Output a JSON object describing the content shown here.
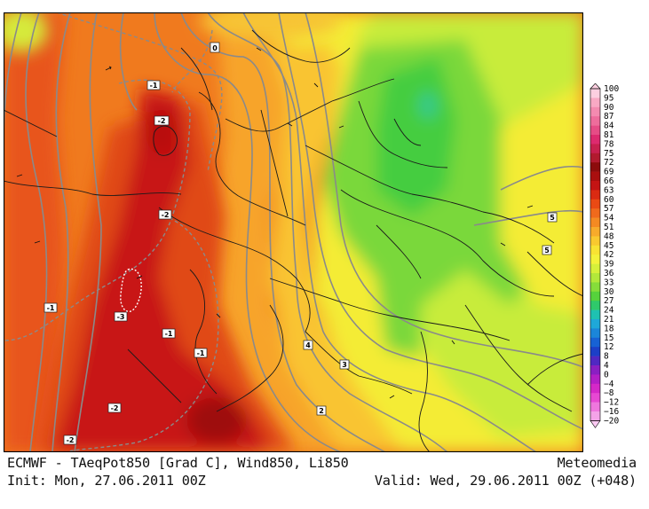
{
  "caption": {
    "title": "ECMWF - TAeqPot850 [Grad C], Wind850, Li850",
    "provider": "Meteomedia",
    "init": "Init: Mon, 27.06.2011 00Z",
    "valid": "Valid: Wed, 29.06.2011 00Z (+048)"
  },
  "legend": {
    "labels": [
      "100",
      "95",
      "90",
      "87",
      "84",
      "81",
      "78",
      "75",
      "72",
      "69",
      "66",
      "63",
      "60",
      "57",
      "54",
      "51",
      "48",
      "45",
      "42",
      "39",
      "36",
      "33",
      "30",
      "27",
      "24",
      "21",
      "18",
      "15",
      "12",
      "8",
      "4",
      "0",
      "−4",
      "−8",
      "−12",
      "−16",
      "−20"
    ],
    "colors": [
      "#fccfe0",
      "#f9a9c4",
      "#f48bb0",
      "#ee6d9c",
      "#e64c86",
      "#dd2a6f",
      "#c8204f",
      "#b11a2e",
      "#8c0c0c",
      "#a90f0f",
      "#c41414",
      "#da2a12",
      "#ea4a14",
      "#f06a1c",
      "#f48a22",
      "#f7ab2b",
      "#f9c92f",
      "#f8e333",
      "#f3f23a",
      "#d6f03a",
      "#b2e83a",
      "#86dd3a",
      "#56d23c",
      "#2fc96b",
      "#1fc1b1",
      "#1fa8d8",
      "#1b86d9",
      "#1762d4",
      "#1c3fc7",
      "#5028c2",
      "#8a1fc2",
      "#b31fc6",
      "#d528c8",
      "#e748d3",
      "#ef77de",
      "#f4a3e8",
      "#fac9f2"
    ]
  },
  "isolines": {
    "values": [
      "0",
      "-1",
      "-2",
      "-2",
      "-3",
      "-1",
      "-1",
      "-1",
      "-2",
      "-2",
      "5",
      "5",
      "4",
      "3",
      "2"
    ]
  },
  "colors": {
    "red": "#c81414",
    "dark_red": "#9e0a0a",
    "orange_red": "#e04a14",
    "orange": "#f07a1e",
    "light_orange": "#f7a42a",
    "yellow_orange": "#f9c430",
    "yellow": "#f4ec36",
    "lime": "#c8ec3a",
    "green": "#7ad83a",
    "bright_green": "#45cd40",
    "teal": "#2cc9a0",
    "geopotential_line": "#8a8a8a",
    "border_line": "#1a1a1a"
  }
}
